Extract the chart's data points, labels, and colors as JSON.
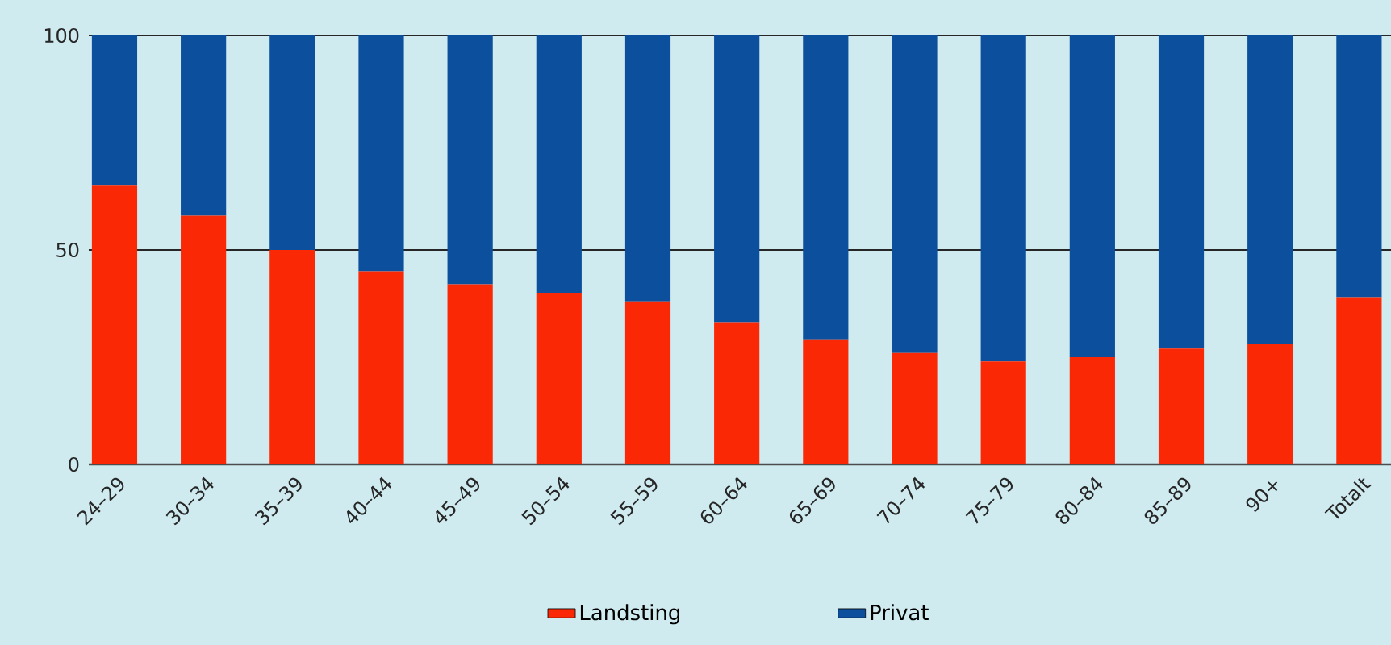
{
  "chart_data": {
    "type": "bar",
    "stacked": true,
    "categories": [
      "24–29",
      "30–34",
      "35–39",
      "40–44",
      "45–49",
      "50–54",
      "55–59",
      "60–64",
      "65–69",
      "70–74",
      "75–79",
      "80–84",
      "85–89",
      "90+",
      "Totalt"
    ],
    "series": [
      {
        "name": "Landsting",
        "color": "#fa2805",
        "values": [
          65,
          58,
          50,
          45,
          42,
          40,
          38,
          33,
          29,
          26,
          24,
          25,
          27,
          28,
          39
        ]
      },
      {
        "name": "Privat",
        "color": "#0c4f9c",
        "values": [
          35,
          42,
          50,
          55,
          58,
          60,
          62,
          67,
          71,
          74,
          76,
          75,
          73,
          72,
          61
        ]
      }
    ],
    "ylim": [
      0,
      100
    ],
    "yticks": [
      0,
      50,
      100
    ],
    "grid": "y",
    "legend": "bottom"
  }
}
